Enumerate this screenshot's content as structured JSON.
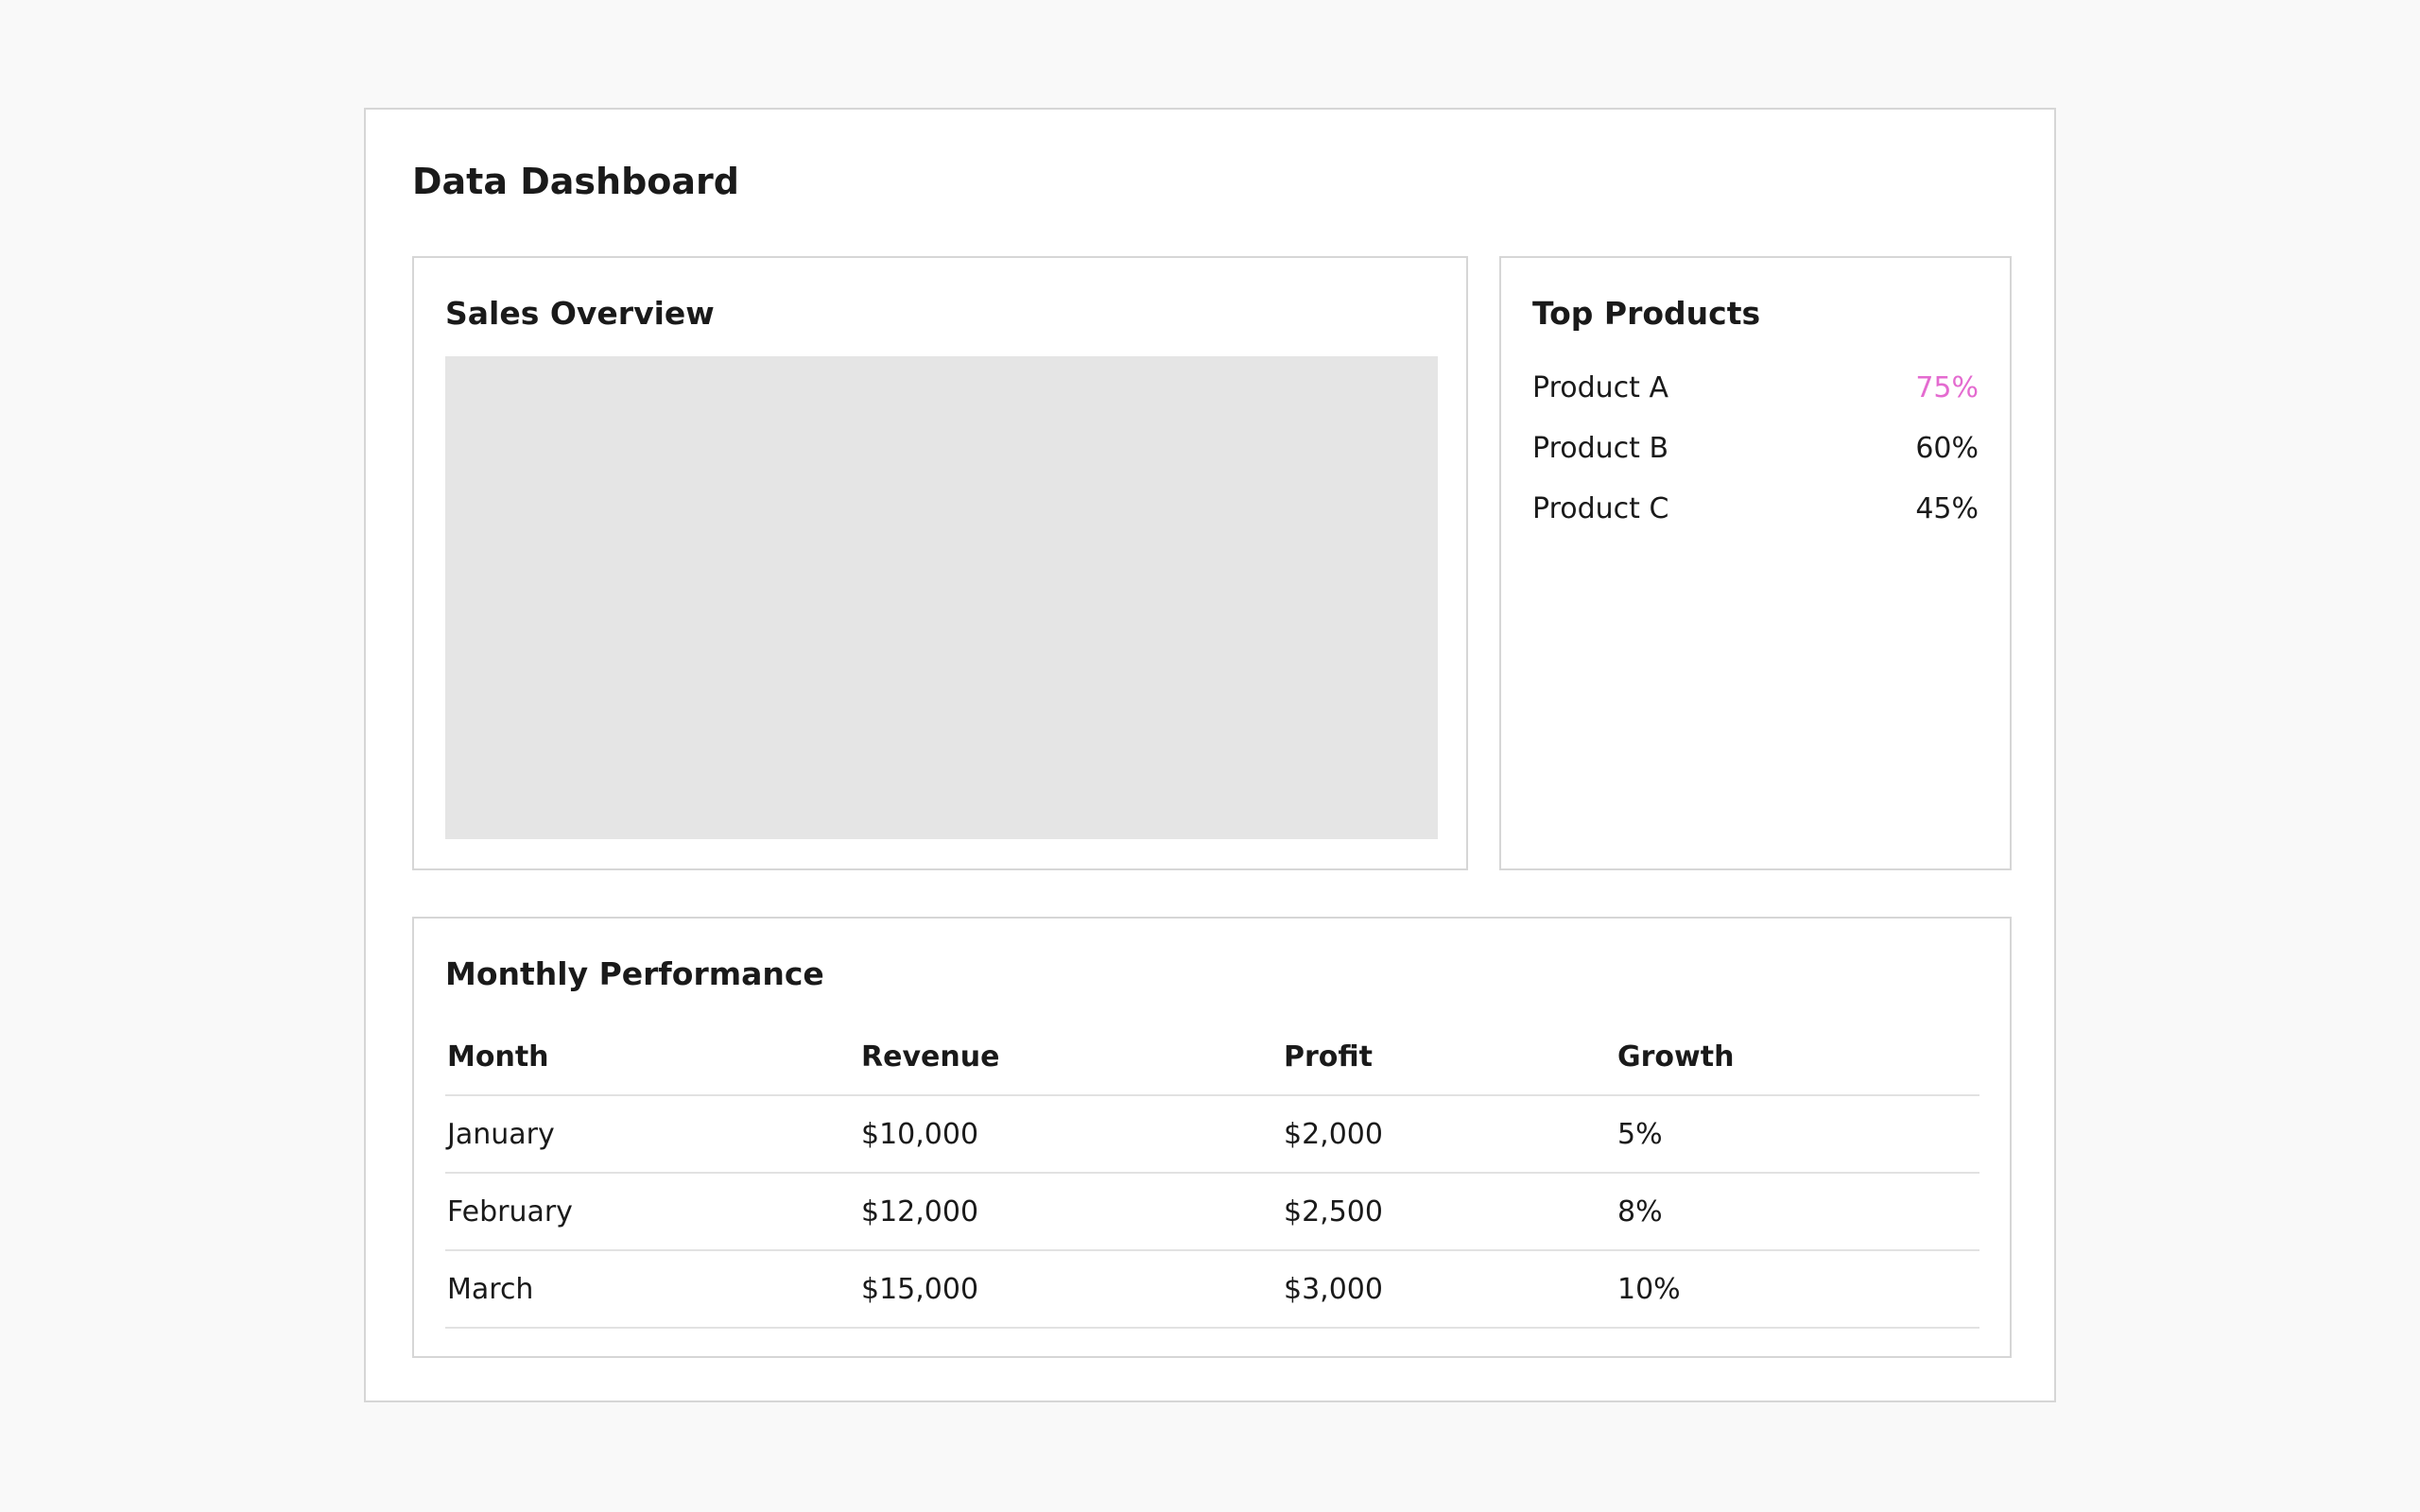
{
  "header": {
    "title": "Data Dashboard"
  },
  "sales_overview": {
    "title": "Sales Overview"
  },
  "top_products": {
    "title": "Top Products",
    "items": [
      {
        "name": "Product A",
        "value": "75%"
      },
      {
        "name": "Product B",
        "value": "60%"
      },
      {
        "name": "Product C",
        "value": "45%"
      }
    ]
  },
  "monthly_performance": {
    "title": "Monthly Performance",
    "table": {
      "columns": [
        "Month",
        "Revenue",
        "Profit",
        "Growth"
      ],
      "rows": [
        [
          "January",
          "$10,000",
          "$2,000",
          "5%"
        ],
        [
          "February",
          "$12,000",
          "$2,500",
          "8%"
        ],
        [
          "March",
          "$15,000",
          "$3,000",
          "10%"
        ]
      ]
    }
  }
}
